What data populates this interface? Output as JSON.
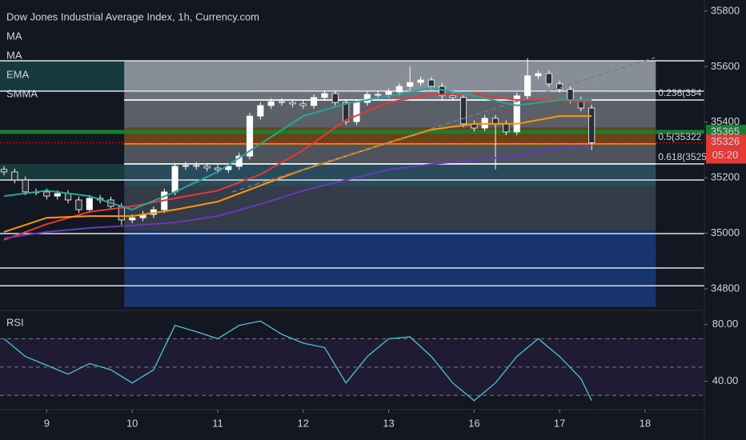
{
  "chart_data": {
    "type": "candlestick",
    "title": "Dow Jones Industrial Average Index, 1h, Currency.com",
    "xlim": [
      -0.375,
      65.55
    ],
    "xticks": [
      {
        "value": 4,
        "label": "9"
      },
      {
        "value": 12,
        "label": "10"
      },
      {
        "value": 20,
        "label": "11"
      },
      {
        "value": 28,
        "label": "12"
      },
      {
        "value": 36,
        "label": "13"
      },
      {
        "value": 44,
        "label": "16"
      },
      {
        "value": 52,
        "label": "17"
      },
      {
        "value": 60,
        "label": "18"
      }
    ],
    "ylim": [
      34731,
      35840
    ],
    "yticks": [
      34800,
      35000,
      35200,
      35400,
      35600,
      35800
    ],
    "up_color": "#ffffff",
    "down_color": "#2a2e39",
    "open": [
      35230,
      35221,
      35192,
      35149,
      35149,
      35134,
      35143,
      35120,
      35085,
      35126,
      35120,
      35097,
      35048,
      35056,
      35068,
      35085,
      35149,
      35241,
      35244,
      35241,
      35235,
      35229,
      35241,
      35278,
      35422,
      35460,
      35474,
      35471,
      35466,
      35460,
      35489,
      35503,
      35471,
      35402,
      35471,
      35500,
      35500,
      35509,
      35529,
      35543,
      35552,
      35529,
      35495,
      35489,
      35394,
      35379,
      35414,
      35394,
      35365,
      35495,
      35567,
      35575,
      35538,
      35518,
      35480,
      35451
    ],
    "high": [
      35242,
      35233,
      35204,
      35161,
      35161,
      35155,
      35155,
      35132,
      35138,
      35138,
      35132,
      35109,
      35068,
      35080,
      35097,
      35161,
      35253,
      35256,
      35256,
      35253,
      35247,
      35253,
      35290,
      35434,
      35472,
      35486,
      35486,
      35483,
      35478,
      35501,
      35515,
      35515,
      35483,
      35483,
      35512,
      35512,
      35521,
      35541,
      35600,
      35564,
      35564,
      35541,
      35507,
      35501,
      35406,
      35426,
      35426,
      35406,
      35507,
      35630,
      35587,
      35587,
      35550,
      35530,
      35492,
      35463
    ],
    "low": [
      35209,
      35180,
      35137,
      35137,
      35122,
      35122,
      35108,
      35073,
      35073,
      35108,
      35085,
      35030,
      35036,
      35044,
      35056,
      35073,
      35137,
      35229,
      35229,
      35223,
      35217,
      35217,
      35229,
      35266,
      35410,
      35448,
      35459,
      35454,
      35448,
      35448,
      35477,
      35459,
      35390,
      35390,
      35459,
      35488,
      35488,
      35497,
      35517,
      35531,
      35517,
      35483,
      35477,
      35382,
      35367,
      35367,
      35230,
      35353,
      35353,
      35483,
      35555,
      35526,
      35506,
      35468,
      35439,
      35300
    ],
    "close": [
      35221,
      35192,
      35149,
      35149,
      35134,
      35143,
      35120,
      35085,
      35126,
      35120,
      35097,
      35048,
      35056,
      35068,
      35085,
      35149,
      35241,
      35244,
      35241,
      35235,
      35229,
      35241,
      35278,
      35422,
      35460,
      35474,
      35471,
      35466,
      35460,
      35489,
      35503,
      35471,
      35402,
      35471,
      35500,
      35500,
      35509,
      35529,
      35543,
      35552,
      35529,
      35495,
      35489,
      35394,
      35379,
      35414,
      35394,
      35365,
      35495,
      35567,
      35575,
      35538,
      35518,
      35480,
      35451,
      35326
    ],
    "series": [
      {
        "name": "MA",
        "color": "#e53935",
        "x": [
          0,
          4,
          8,
          12,
          16,
          20,
          24,
          28,
          32,
          36,
          40,
          44,
          48,
          52,
          55
        ],
        "values": [
          34976,
          35033,
          35077,
          35097,
          35126,
          35154,
          35212,
          35299,
          35408,
          35471,
          35500,
          35500,
          35480,
          35480,
          35471
        ]
      },
      {
        "name": "MA",
        "color": "#26a69a",
        "x": [
          0,
          4,
          8,
          12,
          16,
          20,
          24,
          28,
          32,
          36,
          40,
          44,
          48,
          52,
          55
        ],
        "values": [
          35134,
          35154,
          35134,
          35085,
          35149,
          35221,
          35322,
          35422,
          35466,
          35495,
          35523,
          35495,
          35460,
          35480,
          35480
        ]
      },
      {
        "name": "EMA",
        "color": "#ff9800",
        "x": [
          0,
          4,
          8,
          12,
          16,
          20,
          24,
          28,
          32,
          36,
          40,
          44,
          48,
          52,
          55
        ],
        "values": [
          35005,
          35056,
          35062,
          35062,
          35085,
          35114,
          35172,
          35229,
          35278,
          35327,
          35373,
          35394,
          35394,
          35422,
          35422
        ]
      },
      {
        "name": "SMMA",
        "color": "#673ab7",
        "x": [
          0,
          4,
          8,
          12,
          16,
          20,
          24,
          28,
          32,
          36,
          40,
          44,
          48,
          52,
          55
        ],
        "values": [
          34982,
          35005,
          35019,
          35028,
          35039,
          35062,
          35105,
          35154,
          35192,
          35229,
          35249,
          35264,
          35278,
          35307,
          35316
        ]
      }
    ],
    "fib_range": [
      11.25,
      61
    ],
    "bands": [
      {
        "from": 35621,
        "to": 35512,
        "color": "#9ea3ad"
      },
      {
        "from": 35512,
        "to": 35480,
        "color": "#7d828c"
      },
      {
        "from": 35480,
        "to": 35380,
        "color": "#686c74"
      },
      {
        "from": 35380,
        "to": 35322,
        "color": "#7a4a12"
      },
      {
        "from": 35322,
        "to": 35250,
        "color": "#5a5e66"
      },
      {
        "from": 35250,
        "to": 35170,
        "color": "#2f5566"
      },
      {
        "from": 35170,
        "to": 35010,
        "color": "#39434f"
      },
      {
        "from": 35010,
        "to": 34735,
        "color": "#1a3a7c"
      }
    ],
    "levels": [
      35621,
      35512,
      35480,
      35250,
      35192,
      34999,
      34875,
      34811
    ],
    "fib_levels": [
      {
        "label": "0.236(354",
        "value": 35480,
        "color": "#ffffff"
      },
      {
        "label": "0.5(35322",
        "value": 35322,
        "color": "#ff9800"
      },
      {
        "label": "0.618(3525",
        "value": 35250,
        "color": "#ffffff"
      }
    ],
    "alert_level": 35365,
    "alert_color": "#1e7a34",
    "last_price": 35326,
    "last_color": "#e53935",
    "countdown": "05:20",
    "rsi": {
      "name": "RSI",
      "color": "#4ec3d8",
      "ylim": [
        20,
        90
      ],
      "yticks": [
        {
          "value": 80,
          "label": "80.00"
        },
        {
          "value": 40,
          "label": "40.00"
        }
      ],
      "band": [
        30,
        70
      ],
      "midline": 50,
      "x": [
        0,
        2,
        4,
        6,
        8,
        10,
        12,
        14,
        16,
        18,
        20,
        22,
        24,
        26,
        28,
        30,
        32,
        34,
        36,
        38,
        40,
        42,
        44,
        46,
        48,
        50,
        52,
        54,
        55
      ],
      "values": [
        70,
        57.5,
        51.3,
        45,
        52.5,
        48.1,
        38.8,
        48.1,
        79.4,
        75,
        70,
        79.4,
        82.5,
        73.1,
        66.9,
        63.8,
        38.8,
        57.5,
        70,
        71.3,
        57.5,
        38.8,
        26.3,
        38.8,
        57.5,
        70,
        57.5,
        41.9,
        26.3
      ]
    }
  }
}
